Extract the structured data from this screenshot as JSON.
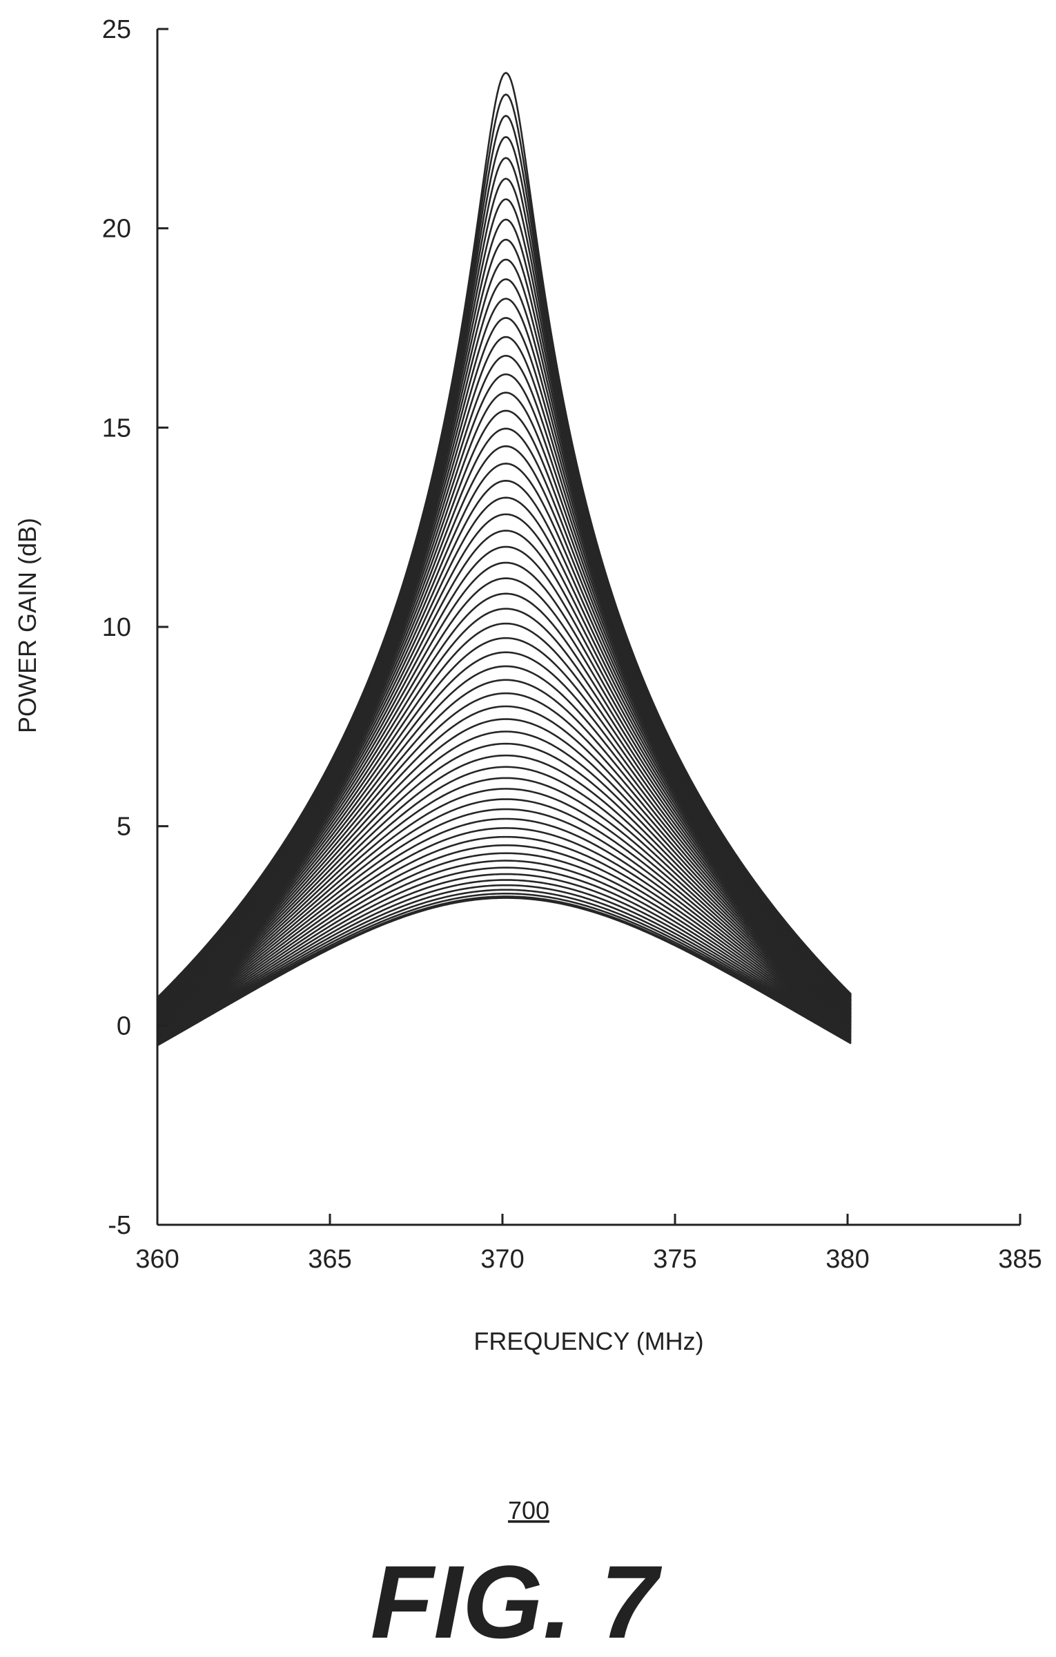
{
  "chart_data": {
    "type": "line",
    "title": "",
    "xlabel": "FREQUENCY (MHz)",
    "ylabel": "POWER GAIN (dB)",
    "xlim": [
      360,
      385
    ],
    "ylim": [
      -5,
      25
    ],
    "xticks": [
      "360",
      "365",
      "370",
      "375",
      "380",
      "385"
    ],
    "yticks": [
      "-5",
      "0",
      "5",
      "10",
      "15",
      "20",
      "25"
    ],
    "grid": false,
    "legend": "none",
    "center_frequency_mhz": 370.1,
    "frequency_range_mhz": [
      360,
      380.1
    ],
    "curve_count": 60,
    "peak_gain_range_db": [
      3.2,
      23.9
    ],
    "edge_gain_range_db": [
      -0.5,
      0.7
    ],
    "series_description_values": {
      "peak_gain_db": [
        3.2,
        3.4,
        3.7,
        4.0,
        4.3,
        4.6,
        5.0,
        5.4,
        5.8,
        6.3,
        6.8,
        7.3,
        7.9,
        8.5,
        9.1,
        9.8,
        10.5,
        11.2,
        12.0,
        12.9,
        13.8,
        14.7,
        15.8,
        17.0,
        18.4,
        20.0,
        21.8,
        23.9
      ],
      "edge_gain_db_at_360mhz": [
        -0.5,
        0.7
      ]
    },
    "line_color": "#262626"
  },
  "figure": {
    "reference_number": "700",
    "caption": "FIG. 7"
  }
}
